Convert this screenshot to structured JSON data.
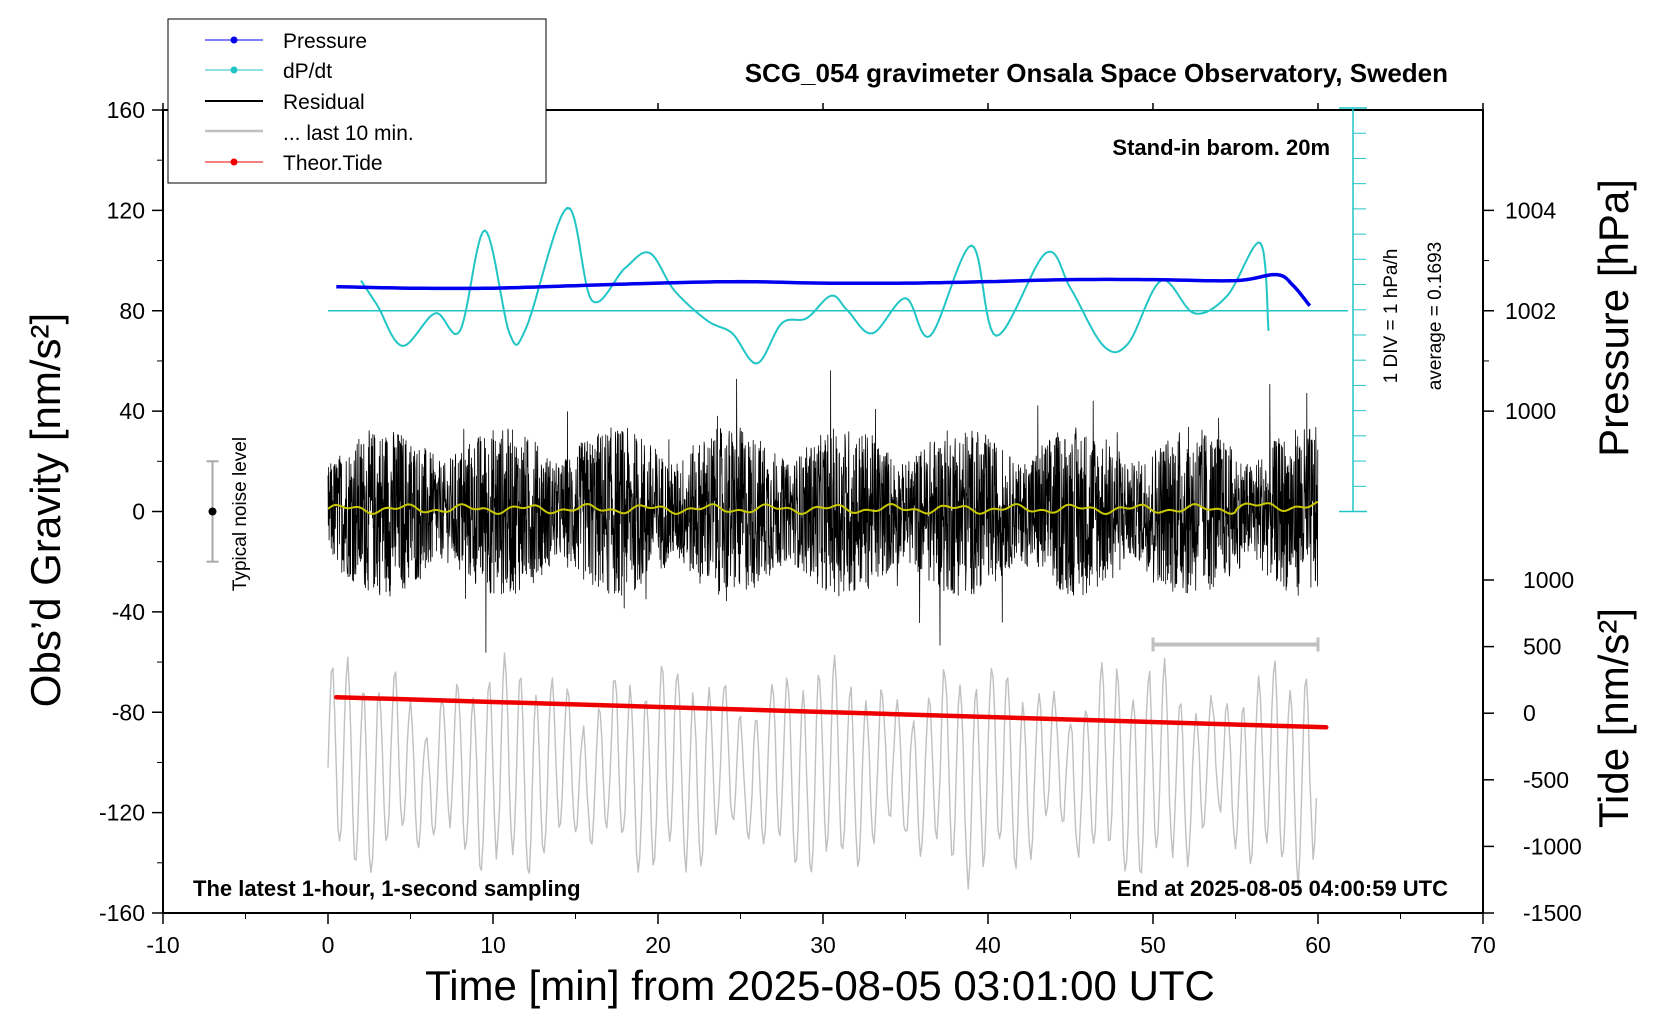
{
  "colors": {
    "pressure": "#0000ee",
    "dpdt": "#22c5c5",
    "residual": "#000000",
    "last10": "#c0c0c0",
    "tide": "#ee0000",
    "smooth": "#c8c800",
    "noise_bar": "#aaaaaa"
  },
  "chart_data": {
    "type": "line",
    "title": "SCG_054 gravimeter Onsala Space Observatory, Sweden",
    "xlabel": "Time [min] from 2025-08-05 03:01:00 UTC",
    "ylabel_left": "Obs’d Gravity [nm/s²]",
    "ylabel_right_top": "Pressure [hPa]",
    "ylabel_right_bottom": "Tide [nm/s²]",
    "xlim": [
      -10,
      70
    ],
    "ylim_gravity": [
      -160,
      160
    ],
    "ylim_tide": [
      -1500,
      1000
    ],
    "xticks": [
      "-10",
      "0",
      "10",
      "20",
      "30",
      "40",
      "50",
      "60",
      "70"
    ],
    "yticks_gravity": [
      "160",
      "120",
      "80",
      "40",
      "0",
      "-40",
      "-80",
      "-120",
      "-160"
    ],
    "yticks_pressure": [
      "1004",
      "1002",
      "1000"
    ],
    "yticks_tide": [
      "1000",
      "500",
      "0",
      "-500",
      "-1000",
      "-1500"
    ],
    "grid": false,
    "legend_position": "top-left",
    "annotations": {
      "barometer": "Stand-in barom. 20m",
      "noise": "Typical noise level",
      "latest": "The latest 1-hour, 1-second sampling",
      "end": "End at 2025-08-05 04:00:59 UTC",
      "div": "1 DIV = 1 hPa/h",
      "average": "average = 0.1693"
    },
    "series": [
      {
        "name": "Pressure",
        "unit": "hPa",
        "x": [
          0.5,
          5,
          10,
          15,
          20,
          25,
          30,
          35,
          40,
          45,
          50,
          55,
          57.5,
          58.5,
          59.5
        ],
        "y": [
          1002.48,
          1002.45,
          1002.45,
          1002.5,
          1002.55,
          1002.58,
          1002.55,
          1002.55,
          1002.58,
          1002.62,
          1002.62,
          1002.6,
          1002.72,
          1002.5,
          1002.1
        ]
      },
      {
        "name": "dP/dt",
        "unit": "nm/s²",
        "x": [
          2,
          3,
          4.5,
          6.5,
          8,
          9.5,
          11,
          12,
          14.5,
          16,
          18,
          19.5,
          21,
          23,
          24.5,
          26,
          27.5,
          29,
          30.5,
          31.5,
          33,
          35,
          36.5,
          39,
          40.5,
          43.5,
          45,
          47,
          48.5,
          50.5,
          52.5,
          54.5,
          56.5,
          57
        ],
        "y": [
          92,
          82,
          66,
          79,
          72,
          112,
          71,
          73,
          121,
          84,
          97,
          103,
          88,
          76,
          71,
          59,
          75,
          77,
          86,
          80,
          71,
          85,
          70,
          106,
          70,
          103,
          89,
          66,
          67,
          92,
          79,
          86,
          107,
          72
        ]
      },
      {
        "name": "Residual",
        "unit": "nm/s²",
        "x": [
          0,
          60
        ],
        "y": [
          -65,
          70
        ]
      },
      {
        "name": "... last 10 min.",
        "unit": "nm/s²",
        "x": [
          50,
          60
        ],
        "y": [
          -160,
          -52
        ]
      },
      {
        "name": "Theor.Tide",
        "unit": "nm/s²",
        "x": [
          0.5,
          60.5
        ],
        "y": [
          -74,
          -86
        ]
      }
    ]
  }
}
